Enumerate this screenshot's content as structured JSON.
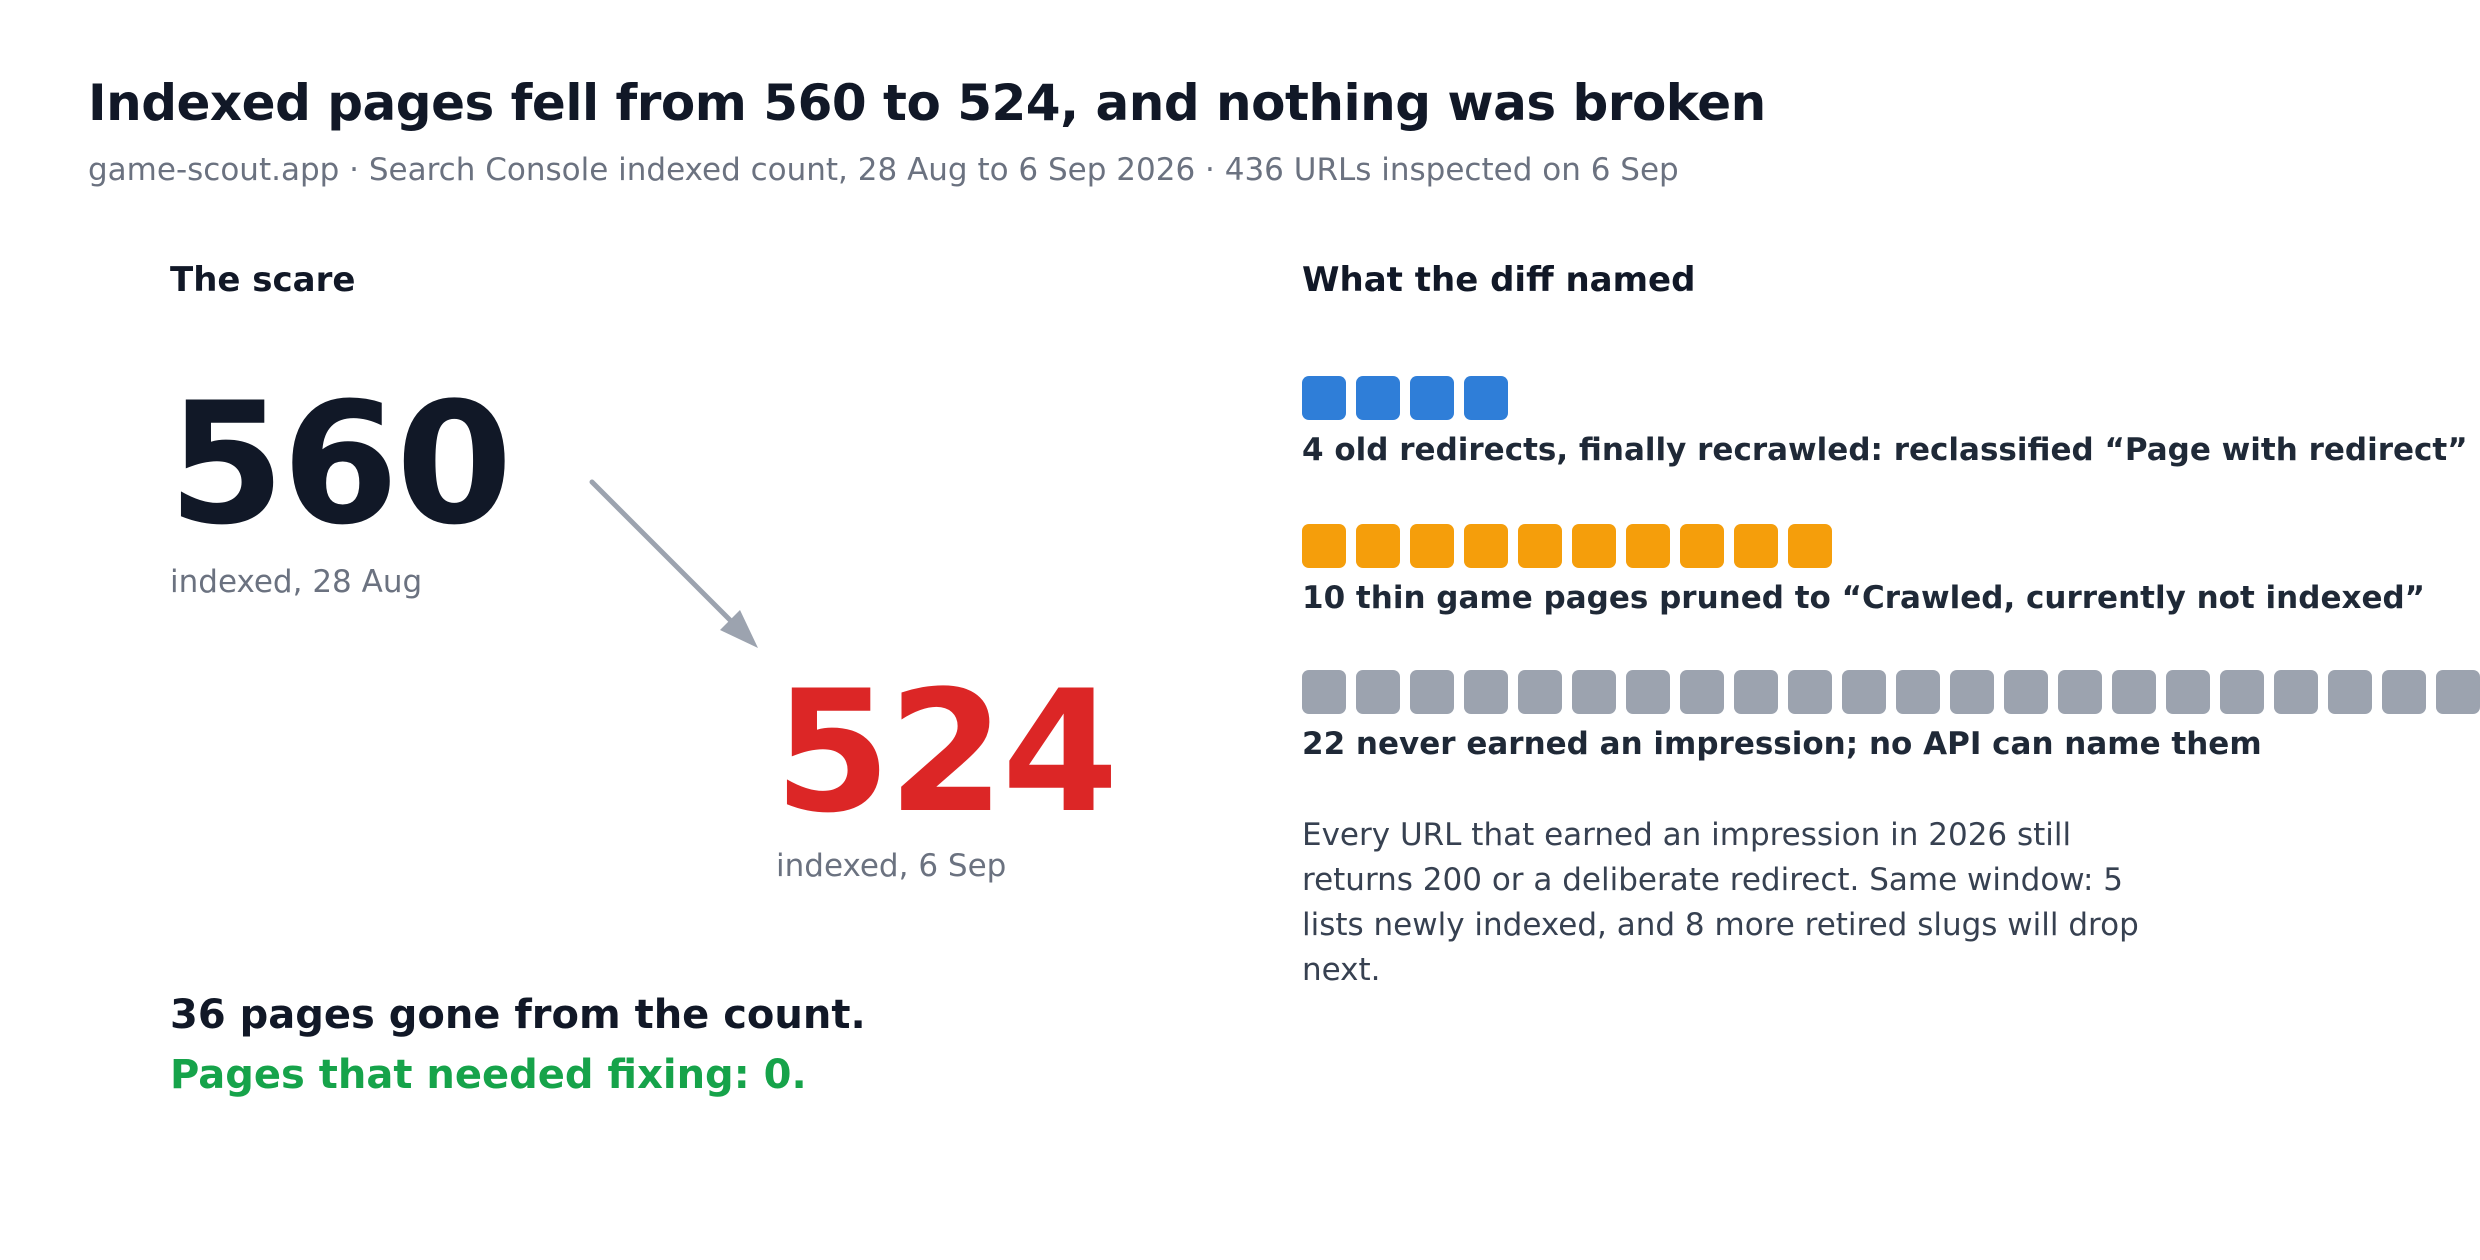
{
  "header": {
    "title": "Indexed pages fell from 560 to 524, and nothing was broken",
    "subtitle": "game-scout.app · Search Console indexed count, 28 Aug to 6 Sep 2026 · 436 URLs inspected on 6 Sep"
  },
  "scare": {
    "heading": "The scare",
    "before": {
      "value": "560",
      "caption": "indexed, 28 Aug"
    },
    "after": {
      "value": "524",
      "caption": "indexed, 6 Sep"
    },
    "gone_line": "36 pages gone from the count.",
    "fix_line": "Pages that needed fixing: 0."
  },
  "diff": {
    "heading": "What the diff named",
    "groups": [
      {
        "count": 4,
        "color": "#2f7ed8",
        "label": "4 old redirects, finally recrawled: reclassified “Page with redirect”"
      },
      {
        "count": 10,
        "color": "#f59e0b",
        "label": "10 thin game pages pruned to “Crawled, currently not indexed”"
      },
      {
        "count": 22,
        "color": "#9ca3af",
        "label": "22 never earned an impression; no API can name them"
      }
    ],
    "note": "Every URL that earned an impression in 2026 still returns 200 or a deliberate redirect. Same window: 5 lists newly indexed, and 8 more retired slugs will drop next."
  },
  "colors": {
    "before_number": "#111827",
    "after_number": "#dc2626",
    "fix_line": "#16a34a",
    "arrow": "#9ca3af"
  }
}
